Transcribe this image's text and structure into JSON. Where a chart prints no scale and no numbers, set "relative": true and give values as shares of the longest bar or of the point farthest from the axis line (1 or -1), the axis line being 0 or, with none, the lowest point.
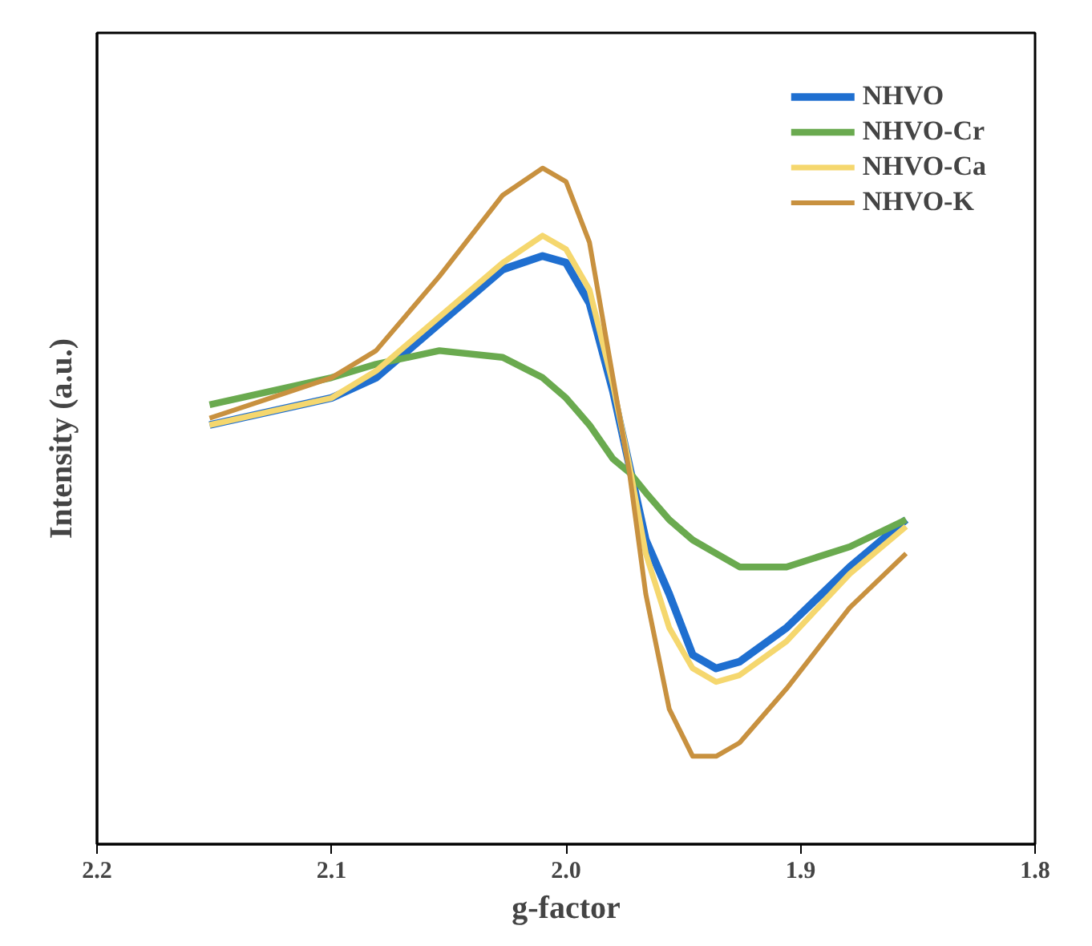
{
  "chart_data": {
    "type": "line",
    "relative": true,
    "xlabel": "g-factor",
    "ylabel": "Intensity (a.u.)",
    "xlim": [
      2.2,
      1.8
    ],
    "xticks": [
      2.2,
      2.1,
      {
        "value": 2.0,
        "label": "2.0"
      },
      1.9,
      1.8
    ],
    "grid": false,
    "legend": "top right",
    "marker": "none",
    "line_style": "solid",
    "x": [
      2.152,
      2.1,
      2.081,
      2.054,
      2.027,
      2.01,
      2.0,
      1.99,
      1.98,
      1.973,
      1.966,
      1.956,
      1.946,
      1.936,
      1.926,
      1.906,
      1.879,
      1.855
    ],
    "series": [
      {
        "name": "NHVO",
        "color": "#1f6fd0",
        "values": [
          0.62,
          0.66,
          0.69,
          0.77,
          0.85,
          0.87,
          0.86,
          0.8,
          0.67,
          0.56,
          0.45,
          0.37,
          0.28,
          0.26,
          0.27,
          0.32,
          0.41,
          0.48
        ]
      },
      {
        "name": "NHVO-Cr",
        "color": "#6aaa4f",
        "values": [
          0.65,
          0.69,
          0.71,
          0.73,
          0.72,
          0.69,
          0.66,
          0.62,
          0.57,
          0.55,
          0.52,
          0.48,
          0.45,
          0.43,
          0.41,
          0.41,
          0.44,
          0.48
        ]
      },
      {
        "name": "NHVO-Ca",
        "color": "#f5d76e",
        "values": [
          0.62,
          0.66,
          0.7,
          0.78,
          0.86,
          0.9,
          0.88,
          0.82,
          0.68,
          0.56,
          0.43,
          0.32,
          0.26,
          0.24,
          0.25,
          0.3,
          0.4,
          0.47
        ]
      },
      {
        "name": "NHVO-K",
        "color": "#c8913f",
        "values": [
          0.63,
          0.69,
          0.73,
          0.84,
          0.96,
          1.0,
          0.98,
          0.89,
          0.69,
          0.55,
          0.37,
          0.2,
          0.13,
          0.13,
          0.15,
          0.23,
          0.35,
          0.43
        ]
      }
    ]
  }
}
